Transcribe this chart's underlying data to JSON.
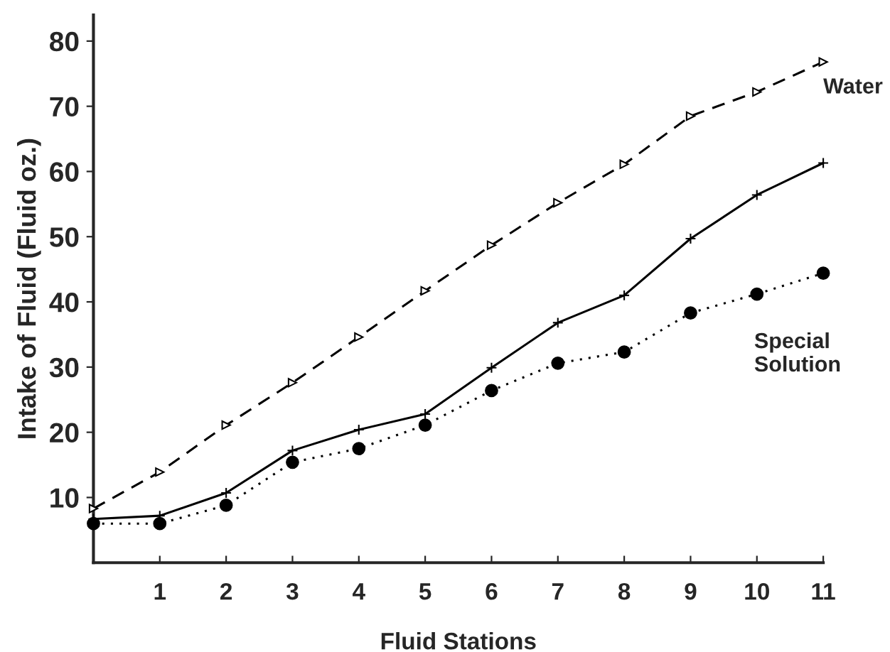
{
  "chart_data": {
    "type": "line",
    "xlabel": "Fluid Stations",
    "ylabel": "Intake of Fluid (Fluid oz.)",
    "x": [
      0,
      1,
      2,
      3,
      4,
      5,
      6,
      7,
      8,
      9,
      10,
      11
    ],
    "xlim": [
      0,
      11
    ],
    "xticks": [
      1,
      2,
      3,
      4,
      5,
      6,
      7,
      8,
      9,
      10,
      11
    ],
    "ylim": [
      0,
      84
    ],
    "yticks": [
      10,
      20,
      30,
      40,
      50,
      60,
      70,
      80
    ],
    "grid": false,
    "legend": false,
    "series": [
      {
        "name": "Water",
        "color": "#000000",
        "marker": "triangle",
        "line_style": "dashed",
        "values": [
          8.3,
          13.9,
          21.1,
          27.6,
          34.6,
          41.7,
          48.7,
          55.2,
          61.1,
          68.5,
          72.2,
          76.8
        ]
      },
      {
        "color": "#000000",
        "marker": "cross",
        "line_style": "solid",
        "values": [
          6.7,
          7.2,
          10.7,
          17.2,
          20.4,
          22.8,
          29.9,
          36.8,
          41.0,
          49.7,
          56.4,
          61.3
        ]
      },
      {
        "name": "Special\nSolution",
        "color": "#000000",
        "marker": "circle",
        "line_style": "dotted",
        "values": [
          6.0,
          6.0,
          8.8,
          15.4,
          17.5,
          21.1,
          26.4,
          30.6,
          32.3,
          38.3,
          41.2,
          44.4
        ]
      }
    ]
  }
}
